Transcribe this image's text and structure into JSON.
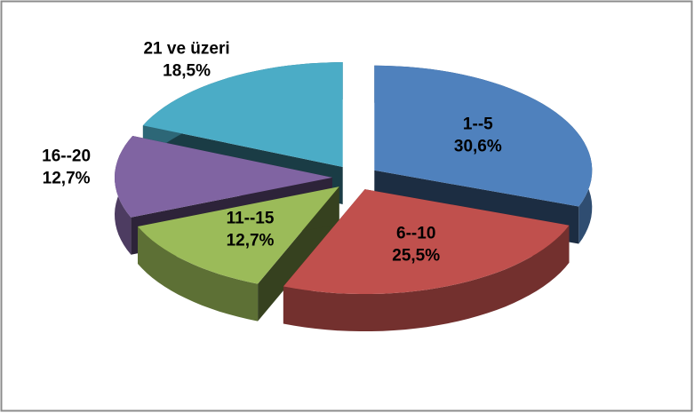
{
  "chart_data": {
    "type": "pie",
    "categories": [
      "1--5",
      "6--10",
      "11--15",
      "16--20",
      "21 ve üzeri"
    ],
    "values": [
      30.6,
      25.5,
      12.7,
      12.7,
      18.5
    ],
    "value_labels": [
      "30,6%",
      "25,5%",
      "12,7%",
      "12,7%",
      "18,5%"
    ],
    "colors": [
      "#4f81bd",
      "#c0504d",
      "#9bbb59",
      "#8064a2",
      "#4bacc6"
    ]
  }
}
